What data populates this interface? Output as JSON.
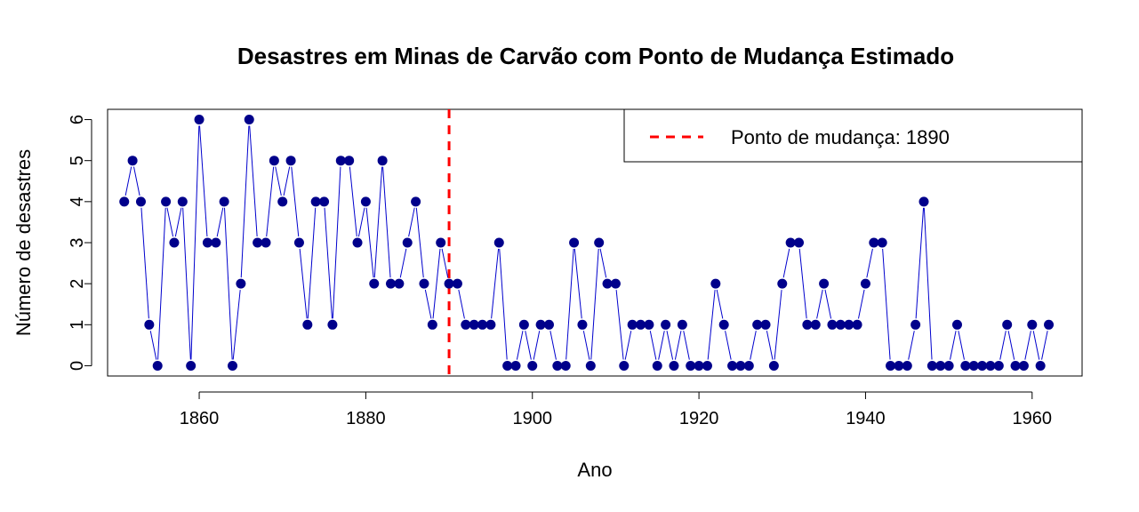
{
  "chart_data": {
    "type": "line",
    "title": "Desastres em Minas de Carvão com Ponto de Mudança Estimado",
    "xlabel": "Ano",
    "ylabel": "Número de desastres",
    "xlim": [
      1849,
      1966
    ],
    "ylim": [
      -0.25,
      6.25
    ],
    "x_ticks": [
      1860,
      1880,
      1900,
      1920,
      1940,
      1960
    ],
    "y_ticks": [
      0,
      1,
      2,
      3,
      4,
      5,
      6
    ],
    "series": [
      {
        "x": [
          1851,
          1852,
          1853,
          1854,
          1855,
          1856,
          1857,
          1858,
          1859,
          1860,
          1861,
          1862,
          1863,
          1864,
          1865,
          1866,
          1867,
          1868,
          1869,
          1870,
          1871,
          1872,
          1873,
          1874,
          1875,
          1876,
          1877,
          1878,
          1879,
          1880,
          1881,
          1882,
          1883,
          1884,
          1885,
          1886,
          1887,
          1888,
          1889,
          1890,
          1891,
          1892,
          1893,
          1894,
          1895,
          1896,
          1897,
          1898,
          1899,
          1900,
          1901,
          1902,
          1903,
          1904,
          1905,
          1906,
          1907,
          1908,
          1909,
          1910,
          1911,
          1912,
          1913,
          1914,
          1915,
          1916,
          1917,
          1918,
          1919,
          1920,
          1921,
          1922,
          1923,
          1924,
          1925,
          1926,
          1927,
          1928,
          1929,
          1930,
          1931,
          1932,
          1933,
          1934,
          1935,
          1936,
          1937,
          1938,
          1939,
          1940,
          1941,
          1942,
          1943,
          1944,
          1945,
          1946,
          1947,
          1948,
          1949,
          1950,
          1951,
          1952,
          1953,
          1954,
          1955,
          1956,
          1957,
          1958,
          1959,
          1960,
          1961,
          1962
        ],
        "values": [
          4,
          5,
          4,
          1,
          0,
          4,
          3,
          4,
          0,
          6,
          3,
          3,
          4,
          0,
          2,
          6,
          3,
          3,
          5,
          4,
          5,
          3,
          1,
          4,
          4,
          1,
          5,
          5,
          3,
          4,
          2,
          5,
          2,
          2,
          3,
          4,
          2,
          1,
          3,
          2,
          2,
          1,
          1,
          1,
          1,
          3,
          0,
          0,
          1,
          0,
          1,
          1,
          0,
          0,
          3,
          1,
          0,
          3,
          2,
          2,
          0,
          1,
          1,
          1,
          0,
          1,
          0,
          1,
          0,
          0,
          0,
          2,
          1,
          0,
          0,
          0,
          1,
          1,
          0,
          2,
          3,
          3,
          1,
          1,
          2,
          1,
          1,
          1,
          1,
          2,
          3,
          3,
          0,
          0,
          0,
          1,
          4,
          0,
          0,
          0,
          1,
          0,
          0,
          0,
          0,
          0,
          1,
          0,
          0,
          1,
          0,
          1
        ],
        "line_color": "#0000CD",
        "point_color": "#00008B"
      }
    ],
    "change_point": {
      "year": 1890,
      "color": "#FF0000",
      "style": "dashed"
    },
    "legend": {
      "position": "top-right",
      "label": "Ponto de mudança: 1890"
    },
    "grid": false
  }
}
